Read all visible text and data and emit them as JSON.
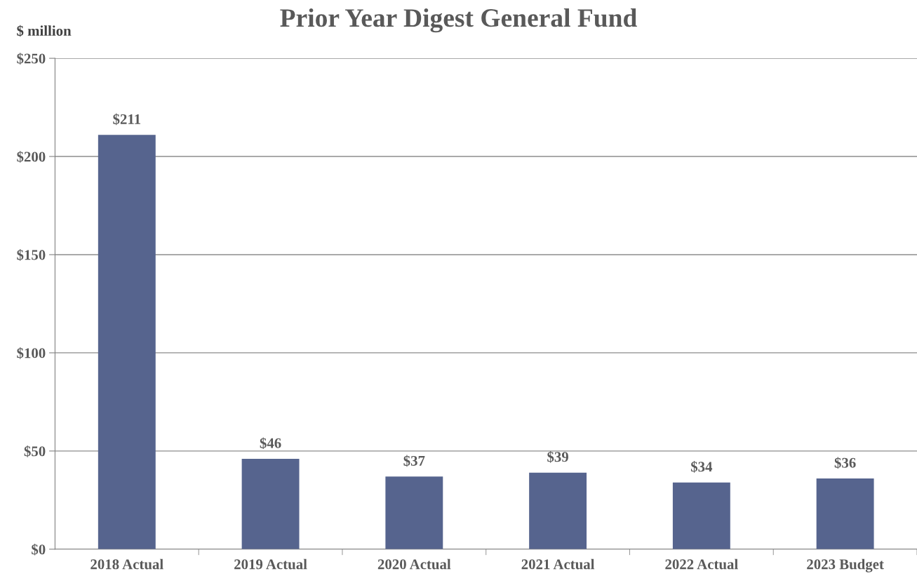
{
  "chart_data": {
    "type": "bar",
    "title": "Prior Year Digest General Fund",
    "ylabel": "$ million",
    "categories": [
      "2018 Actual",
      "2019 Actual",
      "2020 Actual",
      "2021 Actual",
      "2022 Actual",
      "2023 Budget"
    ],
    "values": [
      211,
      46,
      37,
      39,
      34,
      36
    ],
    "value_labels": [
      "$211",
      "$46",
      "$37",
      "$39",
      "$34",
      "$36"
    ],
    "color": "#56648e",
    "ylim": [
      0,
      250
    ],
    "yticks": [
      {
        "value": 0,
        "label": "$0"
      },
      {
        "value": 50,
        "label": "$50"
      },
      {
        "value": 100,
        "label": "$100"
      },
      {
        "value": 150,
        "label": "$150"
      },
      {
        "value": 200,
        "label": "$200"
      },
      {
        "value": 250,
        "label": "$250"
      }
    ],
    "grid": "y",
    "legend": false
  }
}
